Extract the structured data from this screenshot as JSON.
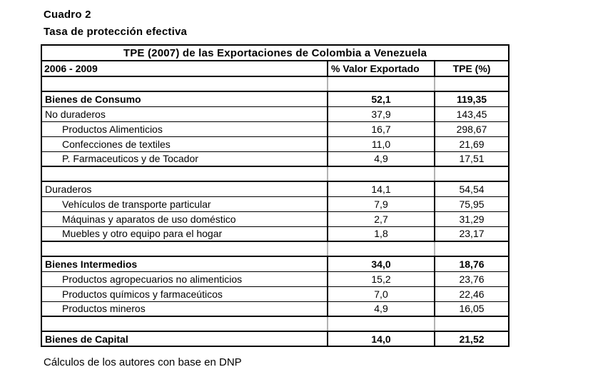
{
  "page": {
    "title": "Cuadro 2",
    "subtitle": "Tasa de protección efectiva",
    "footer": "Cálculos de los autores con base en DNP"
  },
  "table": {
    "title": "TPE (2007) de las Exportaciones de Colombia a Venezuela",
    "columns": {
      "period": "2006 - 2009",
      "valor": "% Valor Exportado",
      "tpe": "TPE (%)"
    },
    "sections": [
      {
        "rows": [
          {
            "label": "Bienes de Consumo",
            "valor": "52,1",
            "tpe": "119,35",
            "bold": true,
            "indent": false
          },
          {
            "label": "No duraderos",
            "valor": "37,9",
            "tpe": "143,45",
            "bold": false,
            "indent": false
          },
          {
            "label": "Productos Alimenticios",
            "valor": "16,7",
            "tpe": "298,67",
            "bold": false,
            "indent": true
          },
          {
            "label": "Confecciones de textiles",
            "valor": "11,0",
            "tpe": "21,69",
            "bold": false,
            "indent": true
          },
          {
            "label": "P. Farmaceuticos y de Tocador",
            "valor": "4,9",
            "tpe": "17,51",
            "bold": false,
            "indent": true
          }
        ]
      },
      {
        "rows": [
          {
            "label": "Duraderos",
            "valor": "14,1",
            "tpe": "54,54",
            "bold": false,
            "indent": false
          },
          {
            "label": "Vehículos de transporte particular",
            "valor": "7,9",
            "tpe": "75,95",
            "bold": false,
            "indent": true
          },
          {
            "label": "Máquinas y aparatos de uso doméstico",
            "valor": "2,7",
            "tpe": "31,29",
            "bold": false,
            "indent": true
          },
          {
            "label": "Muebles y otro equipo para el hogar",
            "valor": "1,8",
            "tpe": "23,17",
            "bold": false,
            "indent": true
          }
        ]
      },
      {
        "rows": [
          {
            "label": "Bienes Intermedios",
            "valor": "34,0",
            "tpe": "18,76",
            "bold": true,
            "indent": false
          },
          {
            "label": "Productos agropecuarios no alimenticios",
            "valor": "15,2",
            "tpe": "23,76",
            "bold": false,
            "indent": true
          },
          {
            "label": "Productos químicos y farmaceúticos",
            "valor": "7,0",
            "tpe": "22,46",
            "bold": false,
            "indent": true
          },
          {
            "label": "Productos mineros",
            "valor": "4,9",
            "tpe": "16,05",
            "bold": false,
            "indent": true
          }
        ]
      },
      {
        "rows": [
          {
            "label": "Bienes de Capital",
            "valor": "14,0",
            "tpe": "21,52",
            "bold": true,
            "indent": false
          }
        ]
      }
    ]
  },
  "colors": {
    "border": "#000000",
    "spacer_separator": "#b3b3b3",
    "background": "#ffffff",
    "text": "#000000"
  }
}
